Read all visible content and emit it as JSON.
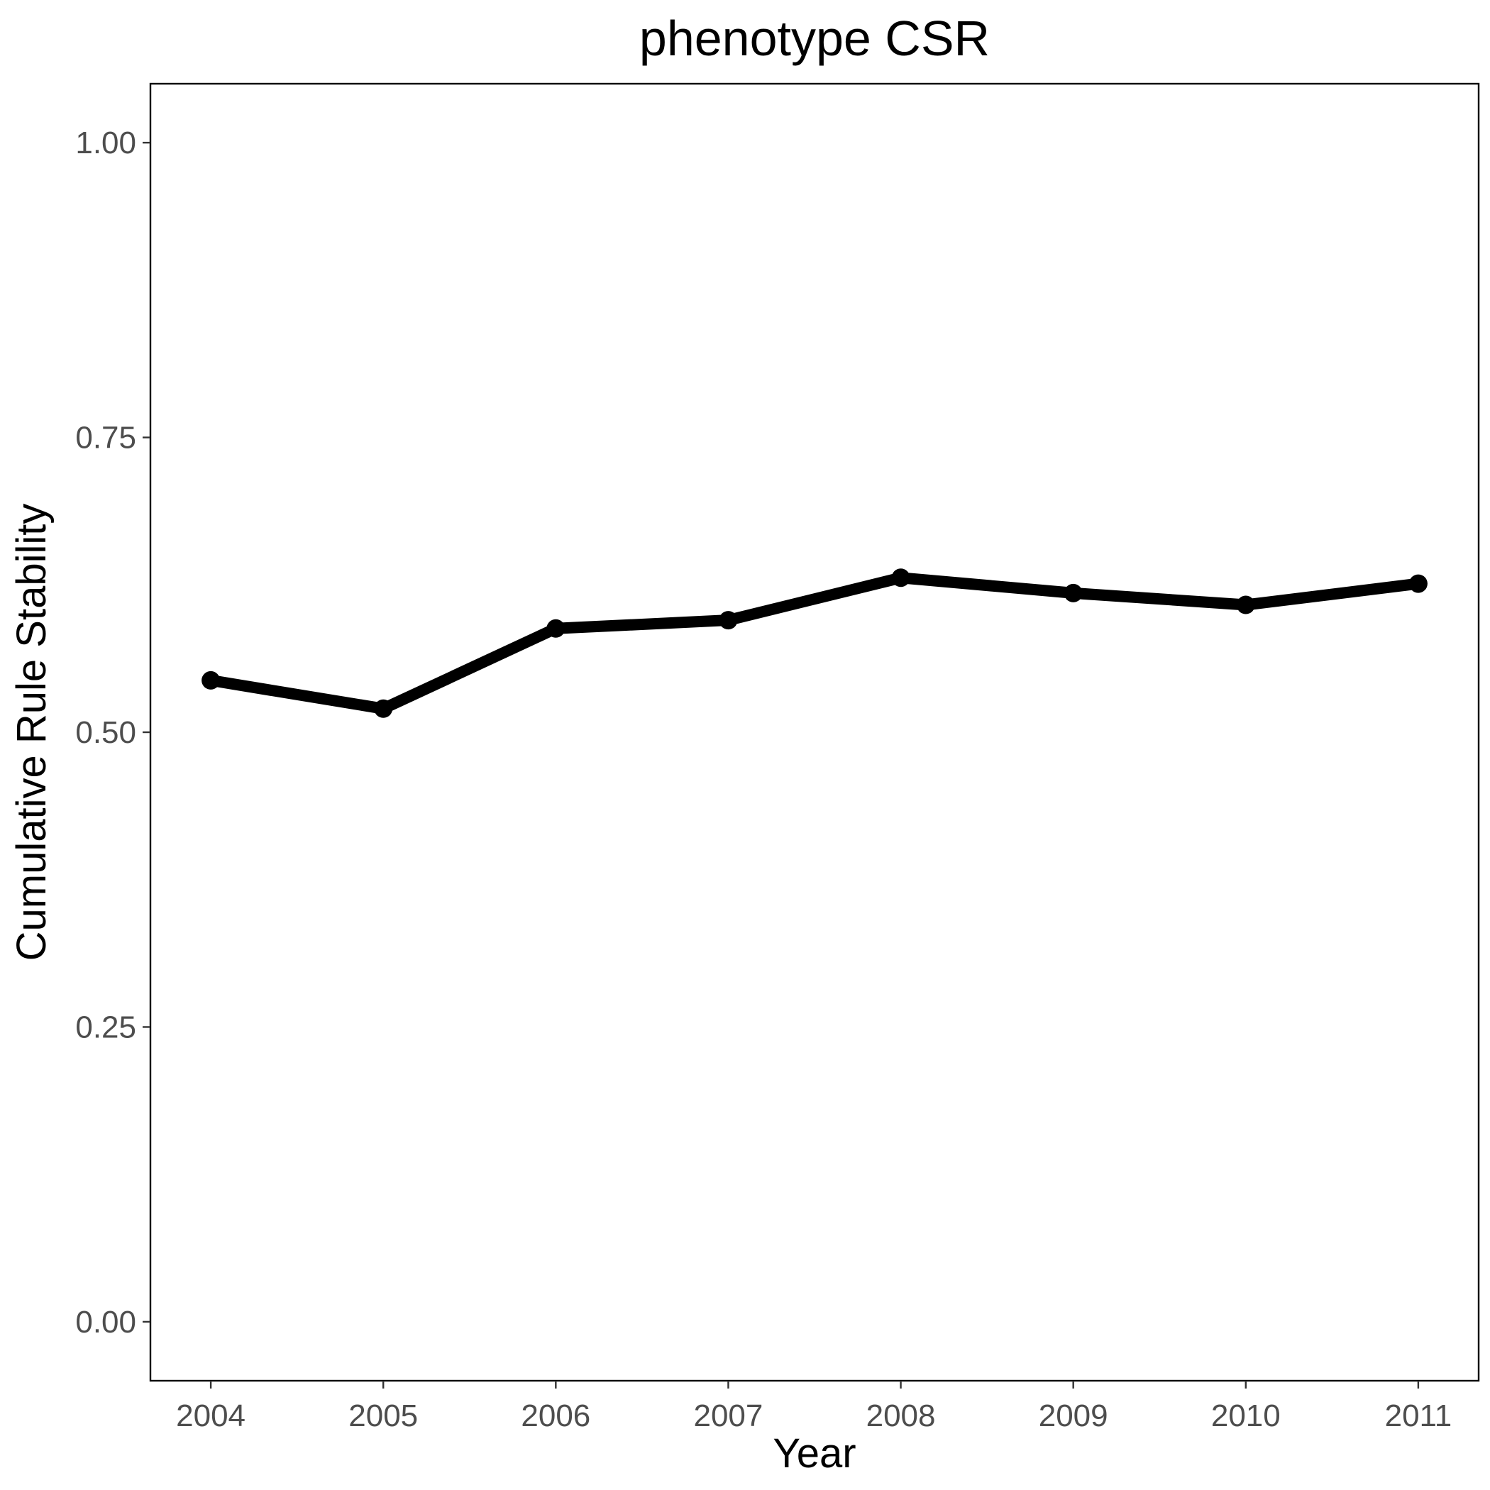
{
  "chart_data": {
    "type": "line",
    "title": "phenotype CSR",
    "xlabel": "Year",
    "ylabel": "Cumulative Rule Stability",
    "x": [
      2004,
      2005,
      2006,
      2007,
      2008,
      2009,
      2010,
      2011
    ],
    "x_tick_labels": [
      "2004",
      "2005",
      "2006",
      "2007",
      "2008",
      "2009",
      "2010",
      "2011"
    ],
    "y_ticks": [
      0.0,
      0.25,
      0.5,
      0.75,
      1.0
    ],
    "y_tick_labels": [
      "0.00",
      "0.25",
      "0.50",
      "0.75",
      "1.00"
    ],
    "xlim": [
      2003.65,
      2011.35
    ],
    "ylim": [
      -0.05,
      1.05
    ],
    "grid": false,
    "series": [
      {
        "values": [
          0.544,
          0.52,
          0.588,
          0.595,
          0.631,
          0.618,
          0.608,
          0.626
        ],
        "color": "#000000"
      }
    ]
  }
}
